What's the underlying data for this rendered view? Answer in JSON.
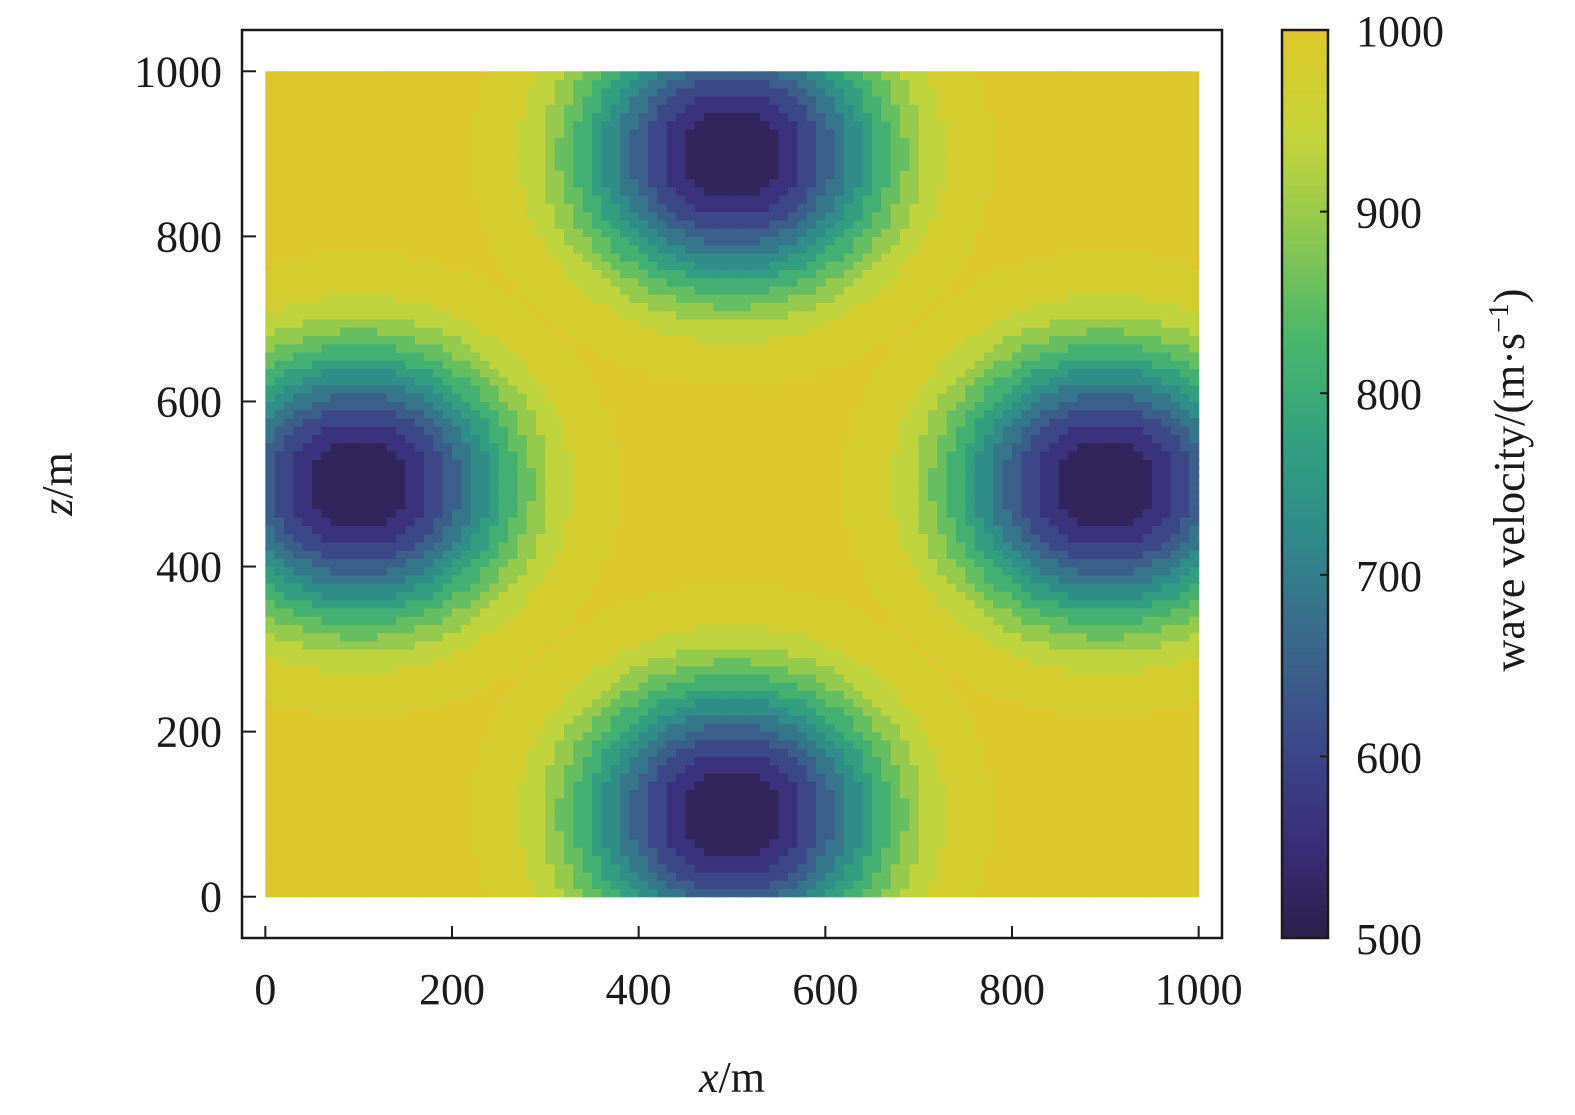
{
  "chart_data": {
    "type": "heatmap",
    "title": "",
    "xlabel": {
      "var": "x",
      "unit": "/m"
    },
    "ylabel": {
      "var": "z",
      "unit": "/m"
    },
    "xlim": [
      -25,
      1025
    ],
    "ylim": [
      -50,
      1050
    ],
    "xticks": [
      "0",
      "200",
      "400",
      "600",
      "800",
      "1000"
    ],
    "yticks": [
      "0",
      "200",
      "400",
      "600",
      "800",
      "1000"
    ],
    "grid": false,
    "domain": {
      "x": [
        0,
        1000
      ],
      "z": [
        0,
        1000
      ]
    },
    "background_velocity": 1000,
    "anomalies": [
      {
        "x": 100,
        "z": 500,
        "min_velocity": 500
      },
      {
        "x": 900,
        "z": 500,
        "min_velocity": 500
      },
      {
        "x": 500,
        "z": 900,
        "min_velocity": 500
      },
      {
        "x": 500,
        "z": 100,
        "min_velocity": 500
      }
    ],
    "anomaly_radius": 280,
    "contour_levels": 12,
    "colorbar": {
      "label": "wave velocity/(m·s",
      "label_exp": "−1",
      "label_close": ")",
      "min": 500,
      "max": 1000,
      "ticks": [
        "500",
        "600",
        "700",
        "800",
        "900",
        "1000"
      ],
      "placement": "right"
    },
    "colormap": [
      "#2b1f4a",
      "#3a2f7a",
      "#3c4a8a",
      "#3a6a8c",
      "#2f8a8a",
      "#33a27f",
      "#4cb86a",
      "#8ec84f",
      "#c6d43a",
      "#dcc82a"
    ]
  }
}
